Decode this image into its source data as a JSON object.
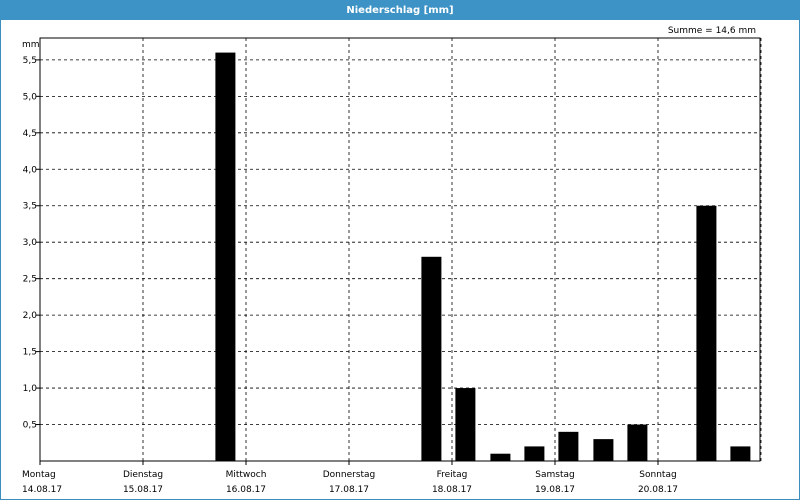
{
  "window": {
    "title": "Niederschlag [mm]"
  },
  "summary": {
    "text": "Summe = 14,6 mm"
  },
  "colors": {
    "titlebar": "#3e93c6",
    "bar": "#000000",
    "grid": "#000000"
  },
  "chart_data": {
    "type": "bar",
    "title": "Niederschlag [mm]",
    "ylabel": "mm",
    "ylim": [
      0,
      5.8
    ],
    "yticks": [
      "0,5",
      "1,0",
      "1,5",
      "2,0",
      "2,5",
      "3,0",
      "3,5",
      "4,0",
      "4,5",
      "5,0",
      "5,5"
    ],
    "ytick_values": [
      0.5,
      1.0,
      1.5,
      2.0,
      2.5,
      3.0,
      3.5,
      4.0,
      4.5,
      5.0,
      5.5
    ],
    "days": [
      {
        "name": "Montag",
        "date": "14.08.17"
      },
      {
        "name": "Dienstag",
        "date": "15.08.17"
      },
      {
        "name": "Mittwoch",
        "date": "16.08.17"
      },
      {
        "name": "Donnerstag",
        "date": "17.08.17"
      },
      {
        "name": "Freitag",
        "date": "18.08.17"
      },
      {
        "name": "Samstag",
        "date": "19.08.17"
      },
      {
        "name": "Sonntag",
        "date": "20.08.17"
      }
    ],
    "bars": [
      {
        "day": 1.8,
        "value": 5.6
      },
      {
        "day": 3.8,
        "value": 2.8
      },
      {
        "day": 4.13,
        "value": 1.0
      },
      {
        "day": 4.47,
        "value": 0.1
      },
      {
        "day": 4.8,
        "value": 0.2
      },
      {
        "day": 5.13,
        "value": 0.4
      },
      {
        "day": 5.47,
        "value": 0.3
      },
      {
        "day": 5.8,
        "value": 0.5
      },
      {
        "day": 6.47,
        "value": 3.5
      },
      {
        "day": 6.8,
        "value": 0.2
      }
    ],
    "grid": true,
    "legend": "none",
    "sum": 14.6
  }
}
